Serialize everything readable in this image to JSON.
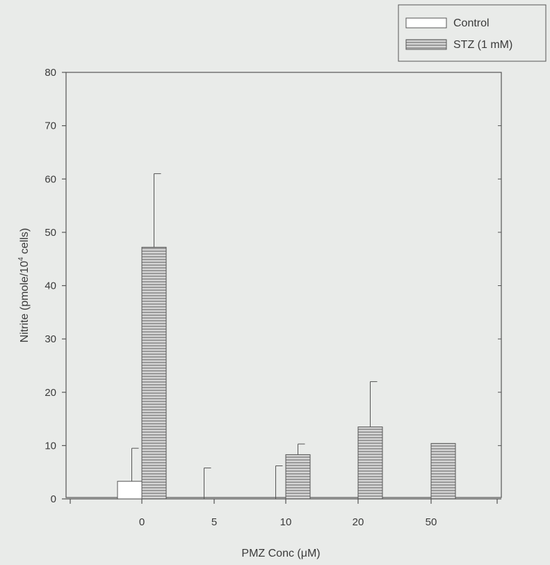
{
  "chart_data": {
    "type": "bar",
    "categories": [
      "0",
      "5",
      "10",
      "20",
      "50"
    ],
    "series": [
      {
        "name": "Control",
        "values": [
          3.3,
          0,
          0,
          0,
          0
        ],
        "error": [
          6.2,
          5.8,
          6.2,
          0,
          0
        ],
        "pattern": "open"
      },
      {
        "name": "STZ (1 mM)",
        "values": [
          47.2,
          0,
          8.3,
          13.5,
          10.4
        ],
        "error": [
          13.8,
          0,
          2.0,
          8.5,
          0
        ],
        "pattern": "horizontal-hatch"
      }
    ],
    "xlabel": "PMZ Conc (μM)",
    "ylabel_parts": [
      "Nitrite (pmole/10",
      "4",
      " cells)"
    ],
    "ylim": [
      0,
      80
    ],
    "yticks": [
      0,
      10,
      20,
      30,
      40,
      50,
      60,
      70,
      80
    ],
    "legend_placement": "top-right",
    "grid": false
  },
  "colors": {
    "background": "#e9ebe9",
    "axis": "#555555",
    "bar_open": "#ffffff",
    "bar_hatch_bg": "#d6d6d6",
    "bar_hatch_line": "#8a8a8a"
  }
}
